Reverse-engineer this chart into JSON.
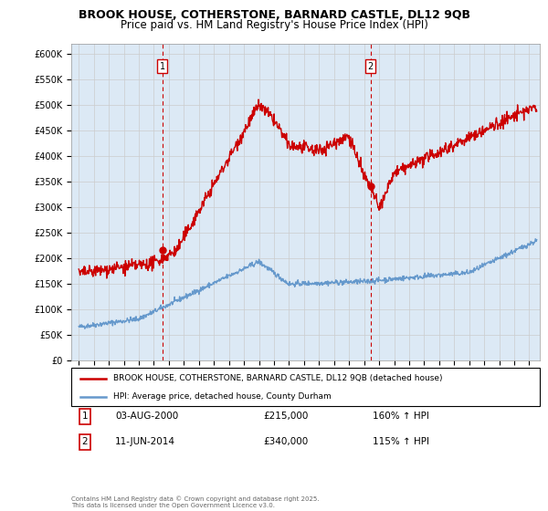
{
  "title": "BROOK HOUSE, COTHERSTONE, BARNARD CASTLE, DL12 9QB",
  "subtitle": "Price paid vs. HM Land Registry's House Price Index (HPI)",
  "ylim": [
    0,
    600000
  ],
  "yticks": [
    0,
    50000,
    100000,
    150000,
    200000,
    250000,
    300000,
    350000,
    400000,
    450000,
    500000,
    550000,
    600000
  ],
  "ytick_labels": [
    "£0",
    "£50K",
    "£100K",
    "£150K",
    "£200K",
    "£250K",
    "£300K",
    "£350K",
    "£400K",
    "£450K",
    "£500K",
    "£550K",
    "£600K"
  ],
  "xlim_start": 1994.5,
  "xlim_end": 2025.7,
  "sale1_date": 2000.58,
  "sale1_price": 215000,
  "sale1_label": "1",
  "sale2_date": 2014.44,
  "sale2_price": 340000,
  "sale2_label": "2",
  "red_line_color": "#cc0000",
  "blue_line_color": "#6699cc",
  "grid_color": "#cccccc",
  "plot_bg_color": "#dce9f5",
  "background_color": "#ffffff",
  "legend_label_red": "BROOK HOUSE, COTHERSTONE, BARNARD CASTLE, DL12 9QB (detached house)",
  "legend_label_blue": "HPI: Average price, detached house, County Durham",
  "annotation1_date": "03-AUG-2000",
  "annotation1_price": "£215,000",
  "annotation1_hpi": "160% ↑ HPI",
  "annotation2_date": "11-JUN-2014",
  "annotation2_price": "£340,000",
  "annotation2_hpi": "115% ↑ HPI",
  "footer": "Contains HM Land Registry data © Crown copyright and database right 2025.\nThis data is licensed under the Open Government Licence v3.0.",
  "title_fontsize": 9,
  "subtitle_fontsize": 8.5
}
